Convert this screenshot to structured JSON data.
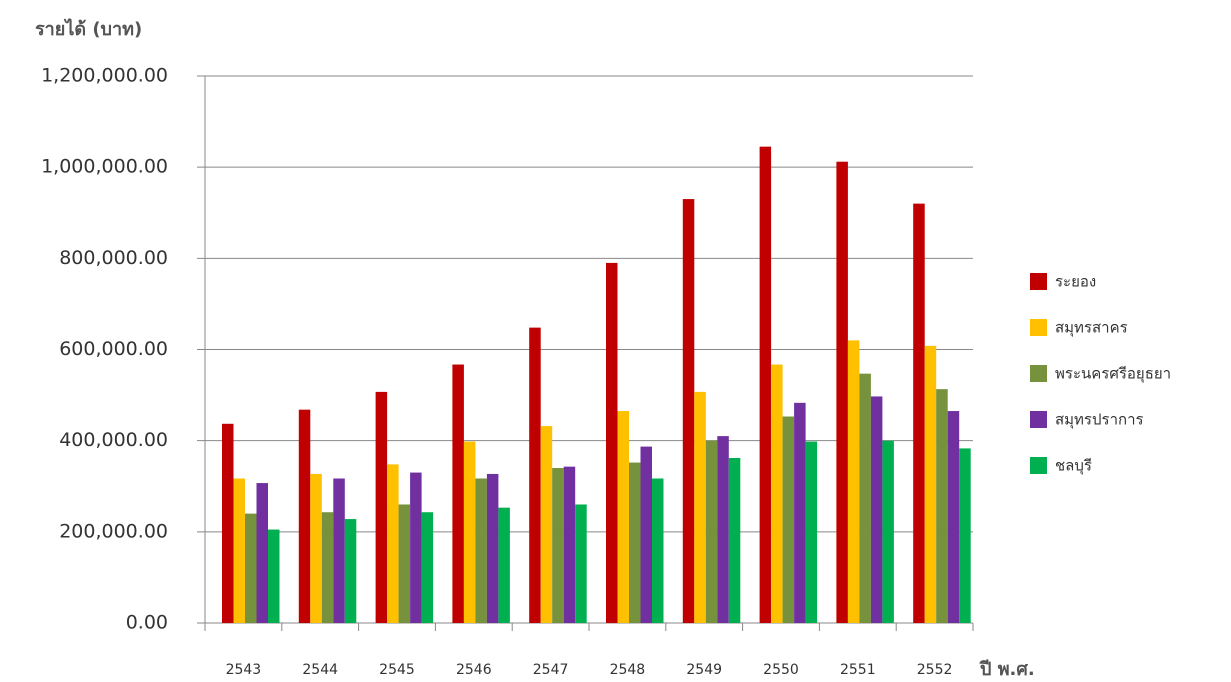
{
  "chart_data": {
    "type": "bar",
    "y_label": "รายได้ (บาท)",
    "x_label": "ปี พ.ศ.",
    "categories": [
      "2543",
      "2544",
      "2545",
      "2546",
      "2547",
      "2548",
      "2549",
      "2550",
      "2551",
      "2552"
    ],
    "series": [
      {
        "name": "ระยอง",
        "color": "#c00000",
        "values": [
          437000,
          468000,
          507000,
          567000,
          648000,
          790000,
          930000,
          1045000,
          1012000,
          920000
        ]
      },
      {
        "name": "สมุทรสาคร",
        "color": "#ffc000",
        "values": [
          317000,
          327000,
          348000,
          398000,
          432000,
          465000,
          507000,
          567000,
          620000,
          608000
        ]
      },
      {
        "name": "พระนครศรีอยุธยา",
        "color": "#76923c",
        "values": [
          240000,
          243000,
          260000,
          317000,
          340000,
          352000,
          400000,
          453000,
          547000,
          513000
        ]
      },
      {
        "name": "สมุทรปราการ",
        "color": "#7030a0",
        "values": [
          307000,
          317000,
          330000,
          327000,
          343000,
          387000,
          410000,
          483000,
          497000,
          465000
        ]
      },
      {
        "name": "ชลบุรี",
        "color": "#00b050",
        "values": [
          205000,
          228000,
          243000,
          253000,
          260000,
          317000,
          362000,
          398000,
          400000,
          383000
        ]
      }
    ],
    "ylim": [
      0,
      1200000
    ],
    "yticks": [
      {
        "value": 0,
        "label": "0.00"
      },
      {
        "value": 200000,
        "label": "200,000.00"
      },
      {
        "value": 400000,
        "label": "400,000.00"
      },
      {
        "value": 600000,
        "label": "600,000.00"
      },
      {
        "value": 800000,
        "label": "800,000.00"
      },
      {
        "value": 1000000,
        "label": "1,000,000.00"
      },
      {
        "value": 1200000,
        "label": "1,200,000.00"
      }
    ],
    "grid": true,
    "legend": "right"
  }
}
